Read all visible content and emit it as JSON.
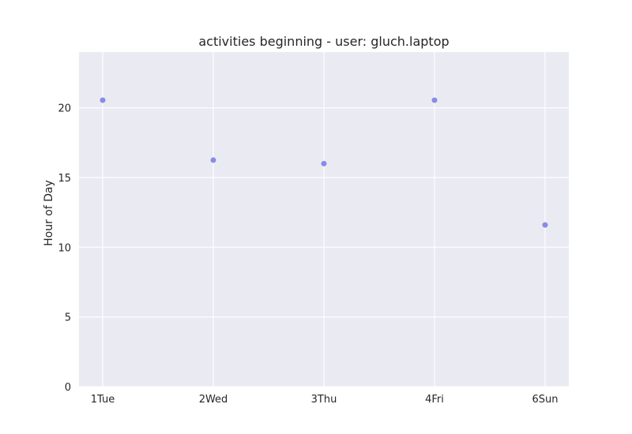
{
  "chart_data": {
    "type": "scatter",
    "title": "activities beginning - user: gluch.laptop",
    "xlabel": "",
    "ylabel": "Hour of Day",
    "categories": [
      "1Tue",
      "2Wed",
      "3Thu",
      "4Fri",
      "6Sun"
    ],
    "values": [
      20.55,
      16.25,
      16.0,
      20.55,
      11.6
    ],
    "ylim": [
      0,
      24
    ],
    "yticks": [
      0,
      5,
      10,
      15,
      20
    ],
    "grid": true,
    "colors": {
      "background": "#eaeaf2",
      "grid": "#ffffff",
      "point": "#7b7fe8",
      "text": "#262626"
    }
  }
}
